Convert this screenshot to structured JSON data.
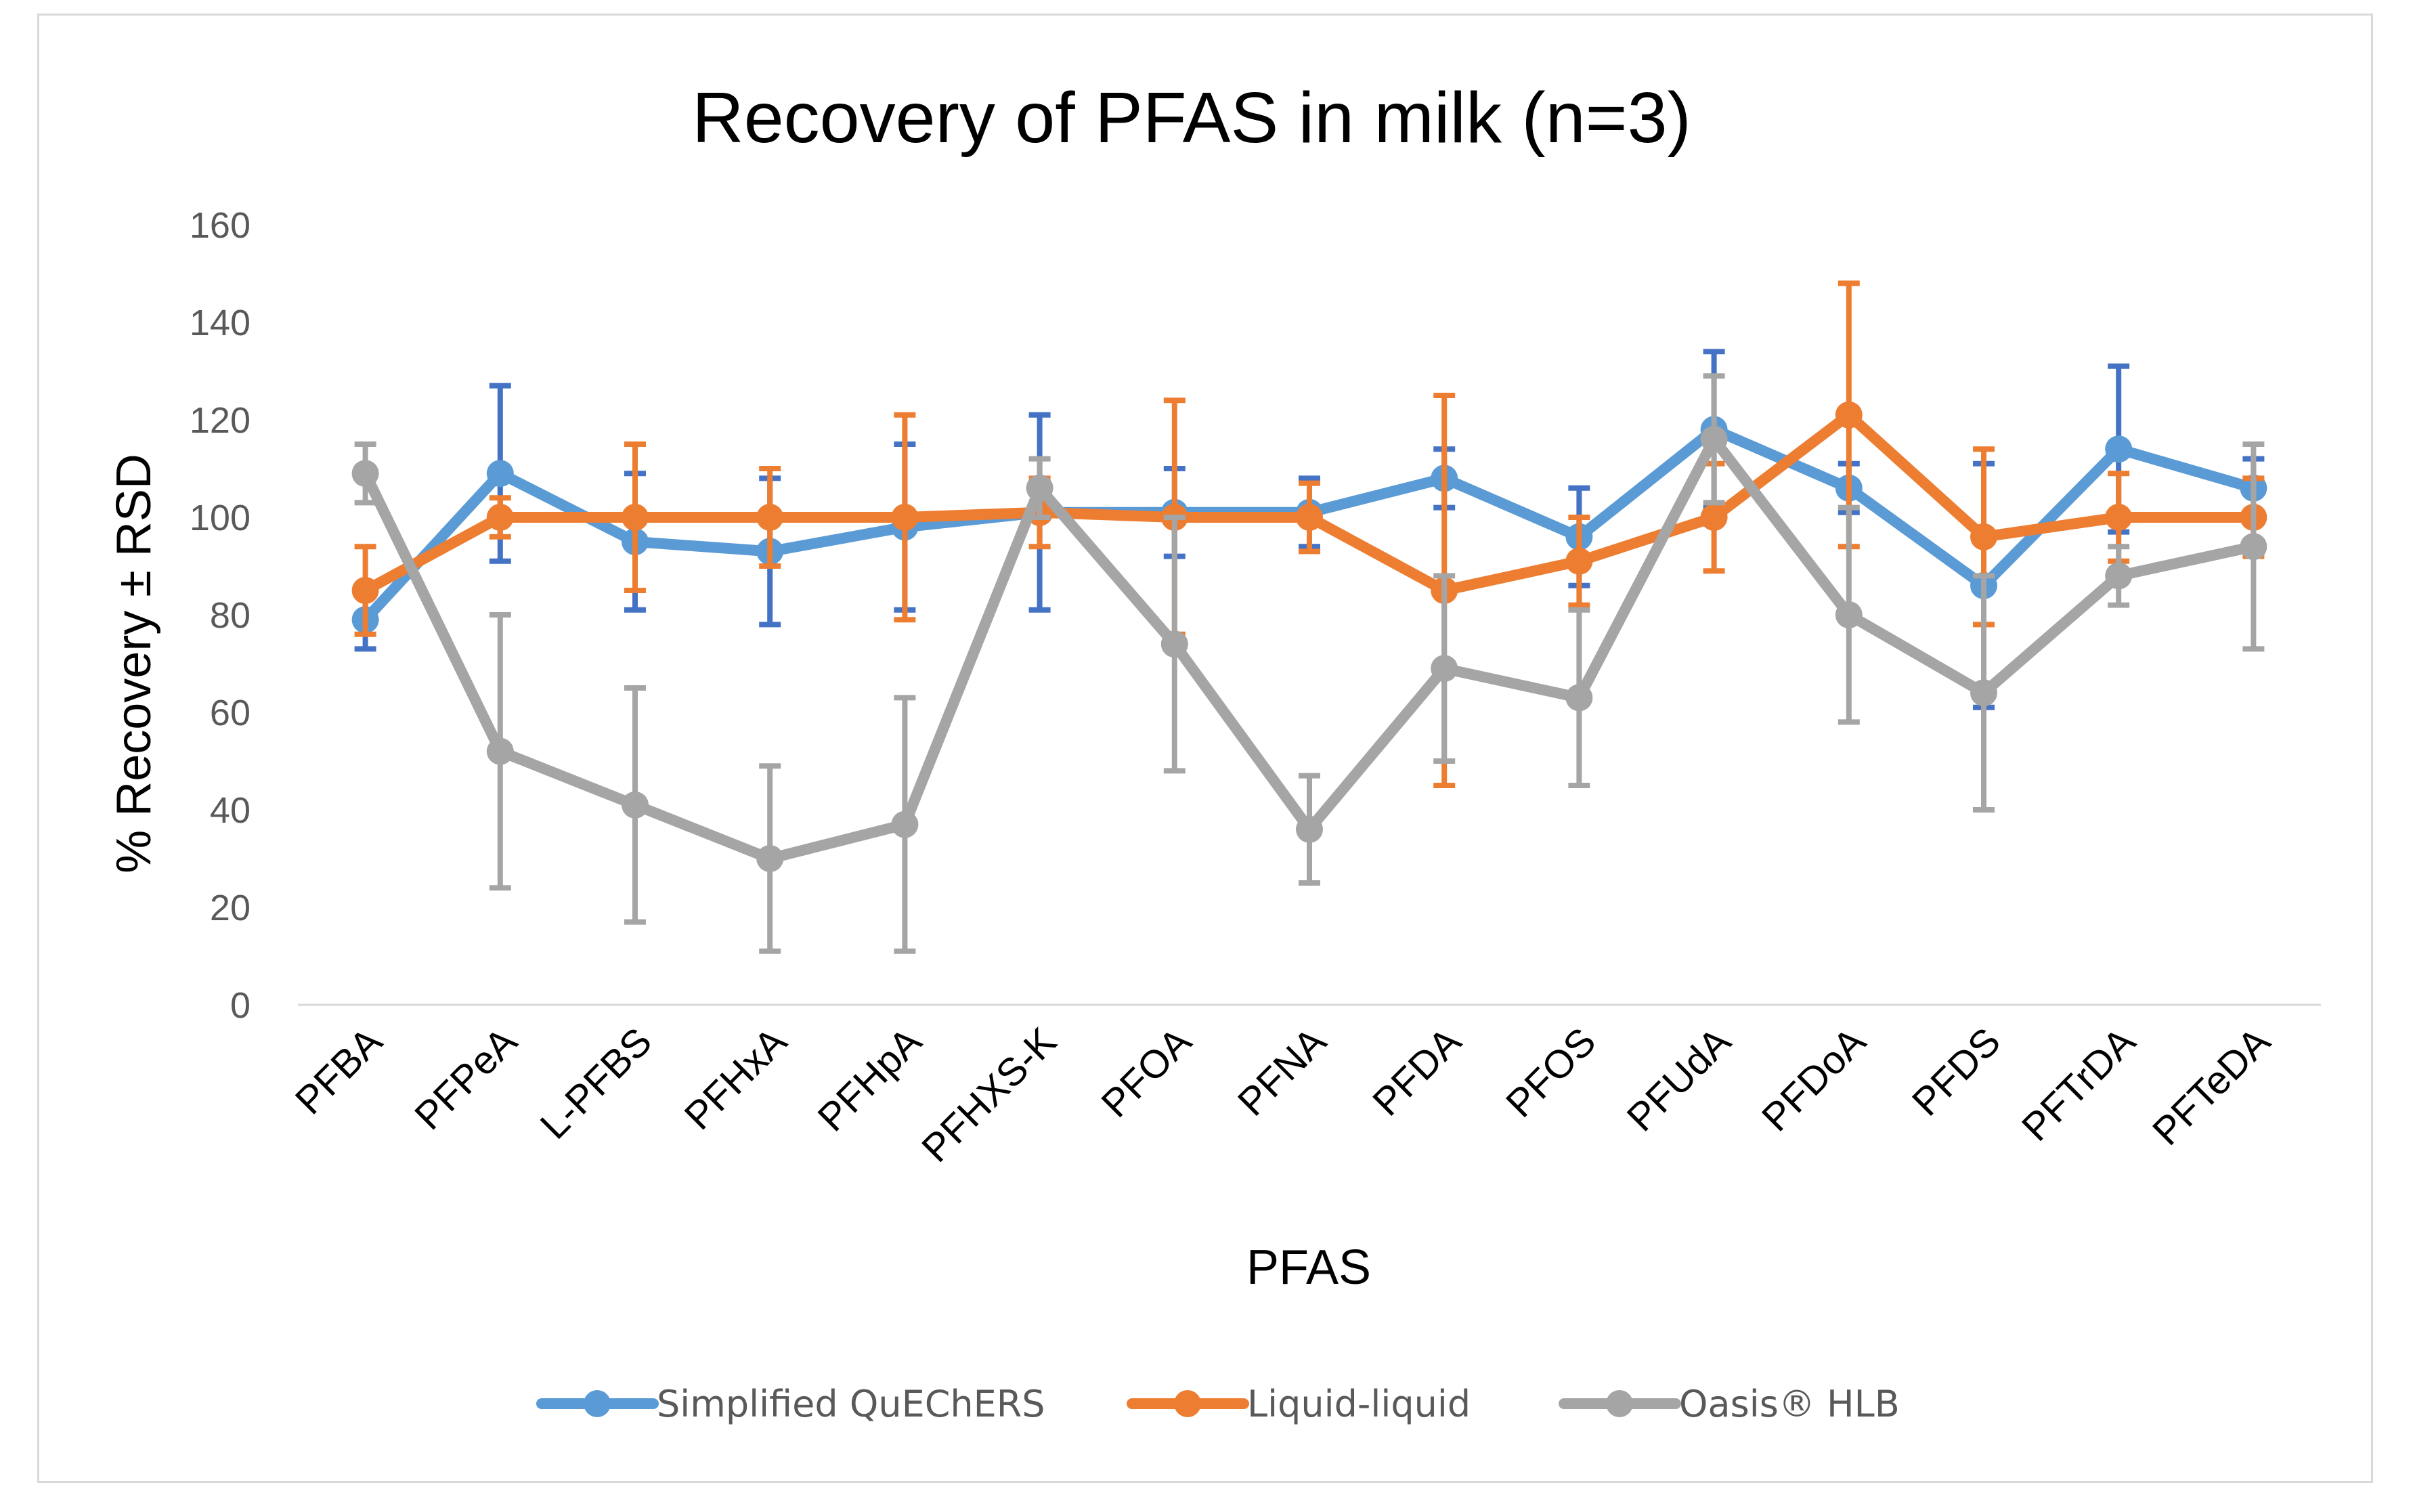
{
  "chart_data": {
    "type": "line",
    "title": "Recovery of PFAS in milk (n=3)",
    "xlabel": "PFAS",
    "ylabel": "% Recovery ± RSD",
    "ylim": [
      0,
      160
    ],
    "yticks": [
      0,
      20,
      40,
      60,
      80,
      100,
      120,
      140,
      160
    ],
    "grid": false,
    "legend_position": "bottom",
    "categories": [
      "PFBA",
      "PFPeA",
      "L-PFBS",
      "PFHxA",
      "PFHpA",
      "PFHXS-K",
      "PFOA",
      "PFNA",
      "PFDA",
      "PFOS",
      "PFUdA",
      "PFDoA",
      "PFDS",
      "PFTrDA",
      "PFTeDA"
    ],
    "series": [
      {
        "name": "Simplified QuEChERS",
        "color": "#5b9bd5",
        "error_color": "#4472c4",
        "values": [
          79,
          109,
          95,
          93,
          98,
          101,
          101,
          101,
          108,
          96,
          118,
          106,
          86,
          114,
          106
        ],
        "errors": [
          6,
          18,
          14,
          15,
          17,
          20,
          9,
          7,
          6,
          10,
          16,
          5,
          25,
          17,
          6
        ]
      },
      {
        "name": "Liquid-liquid",
        "color": "#ed7d31",
        "error_color": "#ed7d31",
        "values": [
          85,
          100,
          100,
          100,
          100,
          101,
          100,
          100,
          85,
          91,
          100,
          121,
          96,
          100,
          100
        ],
        "errors": [
          9,
          4,
          15,
          10,
          21,
          7,
          24,
          7,
          40,
          9,
          11,
          27,
          18,
          9,
          8
        ]
      },
      {
        "name": "Oasis® HLB",
        "color": "#a5a5a5",
        "error_color": "#a5a5a5",
        "values": [
          109,
          52,
          41,
          30,
          37,
          106,
          74,
          36,
          69,
          63,
          116,
          80,
          64,
          88,
          94
        ],
        "errors": [
          6,
          28,
          24,
          19,
          26,
          6,
          26,
          11,
          19,
          18,
          13,
          22,
          24,
          6,
          21
        ]
      }
    ]
  }
}
